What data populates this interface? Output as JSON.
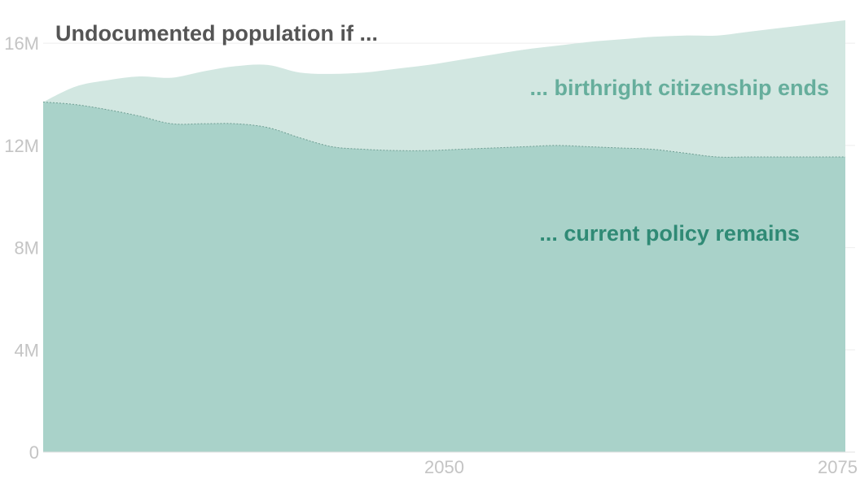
{
  "chart_data": {
    "type": "area",
    "title": "Undocumented population if ...",
    "xlabel": "",
    "ylabel": "",
    "x": [
      2025,
      2027,
      2029,
      2031,
      2033,
      2035,
      2037,
      2039,
      2041,
      2043,
      2045,
      2047,
      2049,
      2051,
      2053,
      2055,
      2057,
      2059,
      2061,
      2063,
      2065,
      2067,
      2069,
      2071,
      2073,
      2075
    ],
    "xlim": [
      2025,
      2075
    ],
    "ylim": [
      0,
      16800000
    ],
    "x_ticks": [
      {
        "value": 2050,
        "label": "2050"
      },
      {
        "value": 2075,
        "label": "2075"
      }
    ],
    "y_ticks": [
      {
        "value": 0,
        "label": "0"
      },
      {
        "value": 4000000,
        "label": "4M"
      },
      {
        "value": 8000000,
        "label": "8M"
      },
      {
        "value": 12000000,
        "label": "12M"
      },
      {
        "value": 16000000,
        "label": "16M"
      }
    ],
    "series": [
      {
        "name": "... birthright citizenship ends",
        "color": "#d2e7e1",
        "text_color": "#66ae9c",
        "values": [
          13700000,
          14300000,
          14550000,
          14700000,
          14650000,
          14900000,
          15100000,
          15150000,
          14850000,
          14800000,
          14850000,
          15000000,
          15150000,
          15350000,
          15550000,
          15750000,
          15900000,
          16050000,
          16150000,
          16250000,
          16300000,
          16300000,
          16450000,
          16600000,
          16750000,
          16900000
        ]
      },
      {
        "name": "... current policy remains",
        "color": "#a9d2c9",
        "text_color": "#2f8a75",
        "values": [
          13700000,
          13600000,
          13400000,
          13150000,
          12850000,
          12850000,
          12850000,
          12700000,
          12300000,
          11950000,
          11850000,
          11800000,
          11800000,
          11850000,
          11900000,
          11950000,
          12000000,
          11950000,
          11900000,
          11850000,
          11700000,
          11550000,
          11550000,
          11550000,
          11550000,
          11550000
        ]
      }
    ],
    "grid": "horizontal",
    "grid_color": "#eeeeee"
  }
}
